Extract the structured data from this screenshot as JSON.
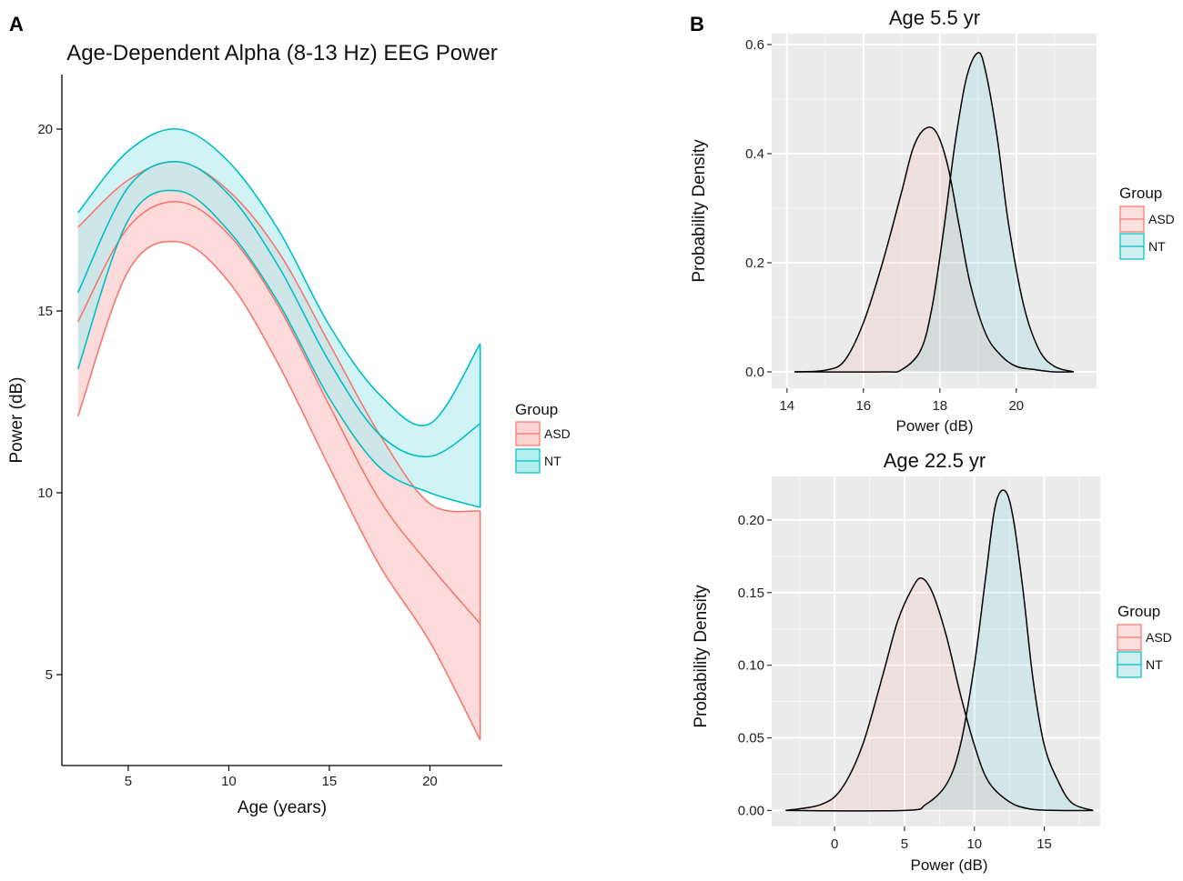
{
  "panel_labels": {
    "a": "A",
    "b": "B"
  },
  "colors": {
    "asd": "#F8766D",
    "nt": "#00BFC4",
    "asd_fill": "#FCD5D3",
    "nt_fill": "#B3EEF0",
    "overlap_fill": "#C8D7D5",
    "panel_bg": "#EBEBEB"
  },
  "chart_data": [
    {
      "id": "A",
      "type": "area",
      "title": "Age-Dependent Alpha (8-13 Hz) EEG Power",
      "xlabel": "Age (years)",
      "ylabel": "Power (dB)",
      "xlim": [
        1.7,
        23.6
      ],
      "ylim": [
        2.5,
        21.5
      ],
      "xticks": [
        5,
        10,
        15,
        20
      ],
      "yticks": [
        5,
        10,
        15,
        20
      ],
      "legend": {
        "title": "Group",
        "items": [
          "ASD",
          "NT"
        ],
        "position": "right"
      },
      "x": [
        2.5,
        5,
        7.5,
        10,
        12.5,
        15,
        17.5,
        20,
        22.5
      ],
      "series": [
        {
          "name": "ASD",
          "upper": [
            17.3,
            18.6,
            19.1,
            18.3,
            16.6,
            14.1,
            11.6,
            9.7,
            9.5
          ],
          "fit": [
            14.7,
            17.3,
            18.0,
            17.1,
            15.1,
            12.4,
            9.8,
            8.0,
            6.4
          ],
          "lower": [
            12.1,
            16.1,
            16.9,
            15.8,
            13.5,
            10.7,
            8.0,
            5.9,
            3.2
          ]
        },
        {
          "name": "NT",
          "upper": [
            17.7,
            19.4,
            20.0,
            19.1,
            17.2,
            14.6,
            12.7,
            11.9,
            14.1
          ],
          "fit": [
            15.5,
            18.4,
            19.1,
            18.2,
            16.2,
            13.6,
            11.6,
            11.0,
            11.9
          ],
          "lower": [
            13.4,
            17.5,
            18.3,
            17.2,
            15.2,
            12.6,
            10.7,
            10.0,
            9.6
          ]
        }
      ]
    },
    {
      "id": "B1",
      "type": "area",
      "title": "Age 5.5 yr",
      "xlabel": "Power (dB)",
      "ylabel": "Probability Density",
      "xlim": [
        13.6,
        22.1
      ],
      "ylim": [
        -0.03,
        0.62
      ],
      "xticks": [
        14,
        16,
        18,
        20
      ],
      "yticks": [
        0.0,
        0.2,
        0.4,
        0.6
      ],
      "ytick_labels": [
        "0.0",
        "0.2",
        "0.4",
        "0.6"
      ],
      "legend": {
        "title": "Group",
        "items": [
          "ASD",
          "NT"
        ],
        "position": "right"
      },
      "series": [
        {
          "name": "ASD",
          "x": [
            14.2,
            15.0,
            15.5,
            16.0,
            16.5,
            17.0,
            17.3,
            17.6,
            17.9,
            18.2,
            18.5,
            18.8,
            19.2,
            19.6,
            20.0,
            20.5,
            21.0,
            21.5
          ],
          "y": [
            0.0,
            0.003,
            0.02,
            0.09,
            0.2,
            0.33,
            0.41,
            0.445,
            0.44,
            0.38,
            0.27,
            0.16,
            0.07,
            0.03,
            0.01,
            0.004,
            0.0,
            0.0
          ]
        },
        {
          "name": "NT",
          "x": [
            14.2,
            16.5,
            17.0,
            17.5,
            17.8,
            18.1,
            18.4,
            18.7,
            19.0,
            19.2,
            19.5,
            19.8,
            20.2,
            20.6,
            21.0,
            21.5
          ],
          "y": [
            0.0,
            0.0,
            0.004,
            0.04,
            0.12,
            0.26,
            0.42,
            0.54,
            0.585,
            0.55,
            0.43,
            0.27,
            0.12,
            0.04,
            0.01,
            0.0
          ]
        }
      ]
    },
    {
      "id": "B2",
      "type": "area",
      "title": "Age 22.5 yr",
      "xlabel": "Power (dB)",
      "ylabel": "Probability Density",
      "xlim": [
        -4.5,
        19.0
      ],
      "ylim": [
        -0.011,
        0.23
      ],
      "xticks": [
        0,
        5,
        10,
        15
      ],
      "yticks": [
        0.0,
        0.05,
        0.1,
        0.15,
        0.2
      ],
      "ytick_labels": [
        "0.00",
        "0.05",
        "0.10",
        "0.15",
        "0.20"
      ],
      "legend": {
        "title": "Group",
        "items": [
          "ASD",
          "NT"
        ],
        "position": "right"
      },
      "series": [
        {
          "name": "ASD",
          "x": [
            -3.5,
            -1.0,
            0.5,
            2.0,
            3.5,
            4.5,
            5.5,
            6.2,
            7.0,
            8.0,
            9.0,
            10.0,
            11.0,
            12.5,
            14.0,
            16.0,
            18.5
          ],
          "y": [
            0.0,
            0.004,
            0.015,
            0.045,
            0.095,
            0.13,
            0.152,
            0.16,
            0.15,
            0.12,
            0.08,
            0.045,
            0.02,
            0.006,
            0.001,
            0.0,
            0.0
          ]
        },
        {
          "name": "NT",
          "x": [
            -3.5,
            5.0,
            6.5,
            8.0,
            9.0,
            10.0,
            10.8,
            11.5,
            12.2,
            12.8,
            13.5,
            14.2,
            15.0,
            16.0,
            17.0,
            18.5
          ],
          "y": [
            0.0,
            0.0,
            0.004,
            0.018,
            0.045,
            0.1,
            0.16,
            0.21,
            0.22,
            0.2,
            0.15,
            0.09,
            0.045,
            0.02,
            0.005,
            0.0
          ]
        }
      ]
    }
  ]
}
